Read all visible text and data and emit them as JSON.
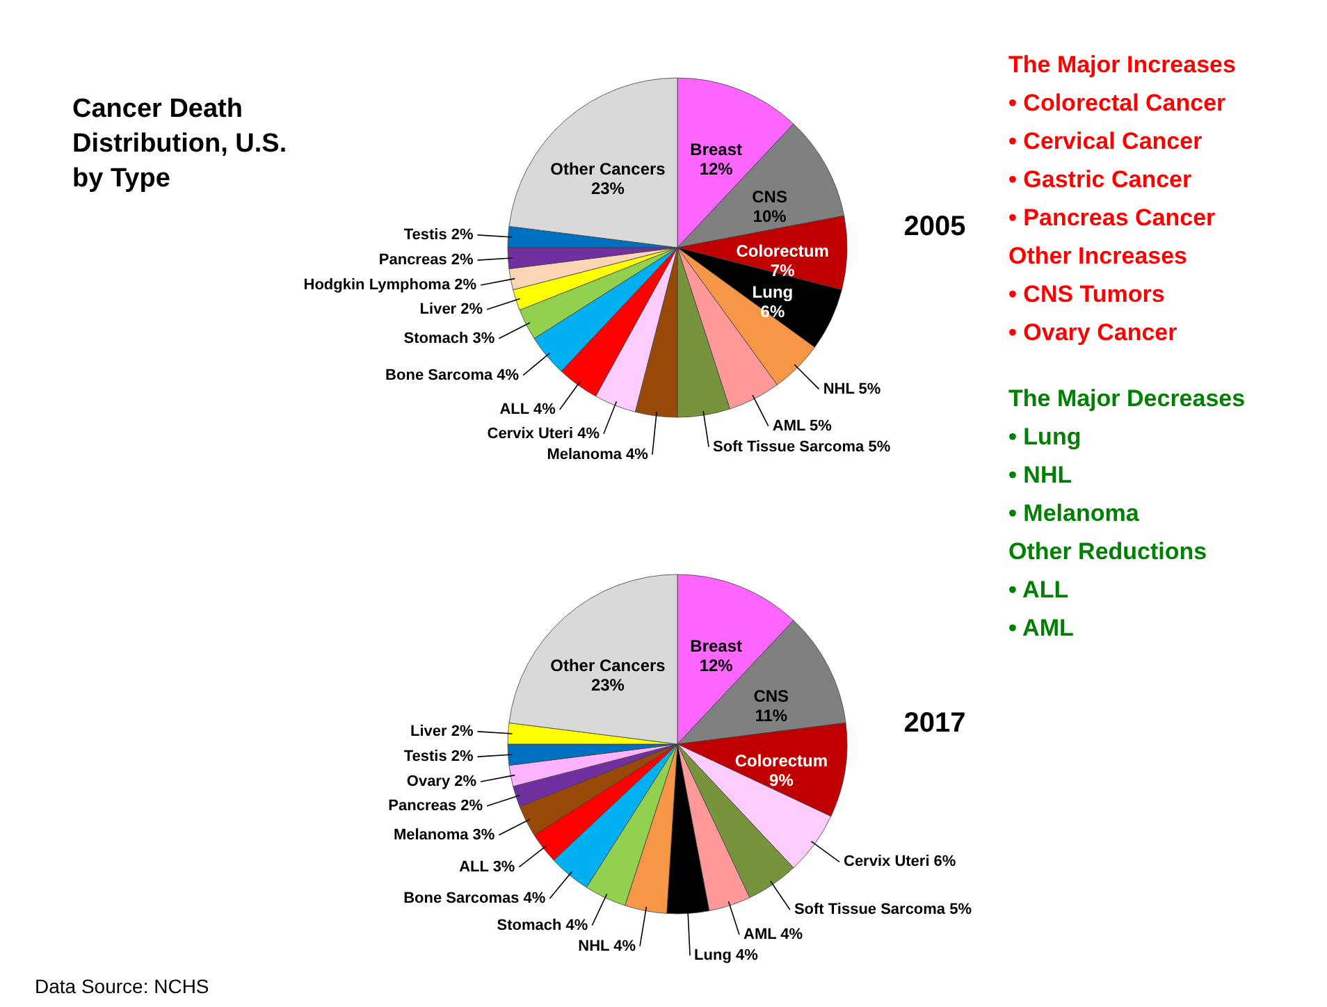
{
  "chart_data": [
    {
      "type": "pie",
      "title": "Cancer Death Distribution, U.S. by Type",
      "subtitle": "2005",
      "categories": [
        "Breast",
        "CNS",
        "Colorectum",
        "Lung",
        "NHL",
        "AML",
        "Soft Tissue Sarcoma",
        "Melanoma",
        "Cervix Uteri",
        "ALL",
        "Bone Sarcoma",
        "Stomach",
        "Liver",
        "Hodgkin Lymphoma",
        "Pancreas",
        "Testis",
        "Other Cancers"
      ],
      "values": [
        12,
        10,
        7,
        6,
        5,
        5,
        5,
        4,
        4,
        4,
        4,
        3,
        2,
        2,
        2,
        2,
        23
      ],
      "value_labels": [
        "12%",
        "10%",
        "7%",
        "6%",
        "5%",
        "5%",
        "5%",
        "4%",
        "4%",
        "4%",
        "4%",
        "3%",
        "2%",
        "2%",
        "2%",
        "2%",
        "23%"
      ],
      "colors": [
        "#ff66ff",
        "#808080",
        "#c00000",
        "#000000",
        "#f79646",
        "#ff9999",
        "#77933c",
        "#984807",
        "#ffccff",
        "#ff0000",
        "#00b0f0",
        "#92d050",
        "#ffff00",
        "#fcd5b5",
        "#7030a0",
        "#0070c0",
        "#d9d9d9"
      ],
      "annotations": [
        "The Major Increases",
        "• Colorectal Cancer",
        "• Cervical Cancer",
        "• Gastric Cancer",
        "• Pancreas Cancer",
        "Other Increases",
        "• CNS Tumors",
        "• Ovary Cancer",
        "The Major Decreases",
        "• Lung",
        "• NHL",
        "• Melanoma",
        "Other Reductions",
        "• ALL",
        "• AML"
      ]
    },
    {
      "type": "pie",
      "subtitle": "2017",
      "categories": [
        "Breast",
        "CNS",
        "Colorectum",
        "Cervix Uteri",
        "Soft Tissue Sarcoma",
        "AML",
        "Lung",
        "NHL",
        "Stomach",
        "Bone Sarcomas",
        "ALL",
        "Melanoma",
        "Pancreas",
        "Ovary",
        "Testis",
        "Liver",
        "Other Cancers"
      ],
      "values": [
        12,
        11,
        9,
        6,
        5,
        4,
        4,
        4,
        4,
        4,
        3,
        3,
        2,
        2,
        2,
        2,
        23
      ],
      "value_labels": [
        "12%",
        "11%",
        "9%",
        "6%",
        "5%",
        "4%",
        "4%",
        "4%",
        "4%",
        "4%",
        "3%",
        "3%",
        "2%",
        "2%",
        "2%",
        "2%",
        "23%"
      ],
      "colors": [
        "#ff66ff",
        "#808080",
        "#c00000",
        "#ffccff",
        "#77933c",
        "#ff9999",
        "#000000",
        "#f79646",
        "#92d050",
        "#00b0f0",
        "#ff0000",
        "#984807",
        "#7030a0",
        "#ffb3ff",
        "#0070c0",
        "#ffff00",
        "#d9d9d9"
      ],
      "annotations": [
        "Data Source: NCHS"
      ]
    }
  ]
}
